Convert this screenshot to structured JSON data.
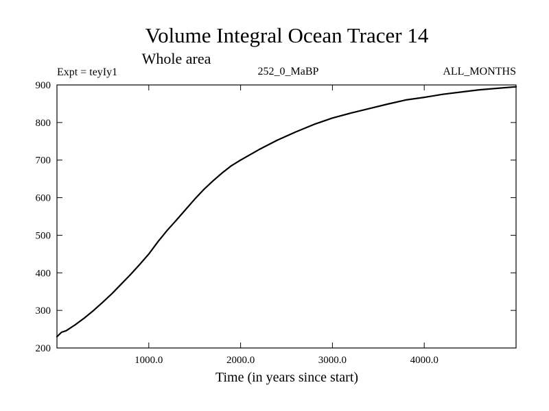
{
  "chart_data": {
    "type": "line",
    "title": "Volume Integral Ocean Tracer 14",
    "subtitle": "Whole area",
    "annotations": {
      "experiment": "Expt = teyIy1",
      "run": "252_0_MaBP",
      "months": "ALL_MONTHS"
    },
    "xlabel": "Time (in years since start)",
    "ylabel": "",
    "xlim": [
      0,
      5000
    ],
    "ylim": [
      200,
      900
    ],
    "x_ticks": [
      1000,
      2000,
      3000,
      4000
    ],
    "x_tick_labels": [
      "1000.0",
      "2000.0",
      "3000.0",
      "4000.0"
    ],
    "y_ticks": [
      200,
      300,
      400,
      500,
      600,
      700,
      800,
      900
    ],
    "y_tick_labels": [
      "200",
      "300",
      "400",
      "500",
      "600",
      "700",
      "800",
      "900"
    ],
    "grid": false,
    "line_color": "#000000",
    "series": [
      {
        "x": [
          0,
          50,
          100,
          200,
          300,
          400,
          500,
          600,
          700,
          800,
          900,
          1000,
          1100,
          1200,
          1300,
          1400,
          1500,
          1600,
          1700,
          1800,
          1900,
          2000,
          2200,
          2400,
          2600,
          2800,
          3000,
          3200,
          3400,
          3600,
          3800,
          4000,
          4200,
          4400,
          4600,
          4800,
          5000
        ],
        "y": [
          230,
          242,
          246,
          262,
          280,
          300,
          322,
          345,
          370,
          395,
          422,
          450,
          483,
          513,
          540,
          568,
          596,
          622,
          645,
          666,
          685,
          700,
          728,
          753,
          775,
          795,
          812,
          825,
          837,
          849,
          860,
          867,
          875,
          881,
          887,
          891,
          895
        ]
      }
    ]
  }
}
